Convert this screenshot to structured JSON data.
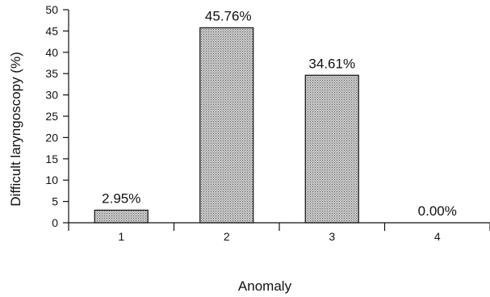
{
  "chart_data": {
    "type": "bar",
    "categories": [
      "1",
      "2",
      "3",
      "4"
    ],
    "values": [
      2.95,
      45.76,
      34.61,
      0.0
    ],
    "data_labels": [
      "2.95%",
      "45.76%",
      "34.61%",
      "0.00%"
    ],
    "xlabel": "Anomaly",
    "ylabel": "Difficult laryngoscopy  (%)",
    "ylim": [
      0,
      50
    ],
    "yticks": [
      0,
      5,
      10,
      15,
      20,
      25,
      30,
      35,
      40,
      45,
      50
    ],
    "grid": false,
    "bar_fill": "#b5b5b5",
    "bar_stroke": "#111111"
  }
}
